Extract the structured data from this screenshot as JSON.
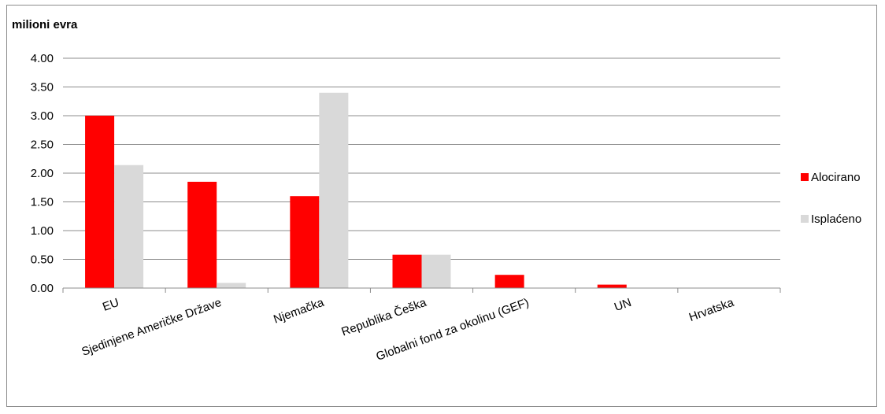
{
  "chart_data": {
    "type": "bar",
    "unit_label": "milioni evra",
    "categories": [
      "EU",
      "Sjedinjene Američke Države",
      "Njemačka",
      "Republika Češka",
      "Globalni fond za okolinu (GEF)",
      "UN",
      "Hrvatska"
    ],
    "series": [
      {
        "name": "Alocirano",
        "color": "#ff0000",
        "values": [
          3.0,
          1.85,
          1.6,
          0.58,
          0.23,
          0.06,
          0.0
        ]
      },
      {
        "name": "Isplaćeno",
        "color": "#d9d9d9",
        "values": [
          2.14,
          0.09,
          3.4,
          0.58,
          0.0,
          0.0,
          0.0
        ]
      }
    ],
    "ylim": [
      0,
      4
    ],
    "yticks": [
      "0.00",
      "0.50",
      "1.00",
      "1.50",
      "2.00",
      "2.50",
      "3.00",
      "3.50",
      "4.00"
    ],
    "grid": true,
    "legend_position": "right"
  }
}
